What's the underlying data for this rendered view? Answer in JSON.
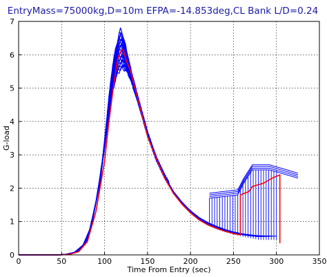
{
  "chart_data": {
    "type": "line",
    "title": "EntryMass=75000kg,D=10m EFPA=-14.853deg,CL Bank L/D=0.24",
    "xlabel": "Time From Entry (sec)",
    "ylabel": "G-load",
    "xlim": [
      0,
      350
    ],
    "ylim": [
      0,
      7
    ],
    "xticks": [
      "0",
      "50",
      "100",
      "150",
      "200",
      "250",
      "300",
      "350"
    ],
    "yticks": [
      "0",
      "1",
      "2",
      "3",
      "4",
      "5",
      "6",
      "7"
    ],
    "grid": true,
    "colors": {
      "ensemble": "#0000ff",
      "nominal": "#ff0000"
    },
    "ensemble_upper": {
      "x": [
        0,
        45,
        55,
        65,
        75,
        85,
        95,
        100,
        105,
        110,
        115,
        118,
        120,
        122,
        125,
        130,
        140,
        150,
        160,
        170,
        180,
        190,
        200,
        210,
        220,
        230,
        240,
        250,
        260,
        270,
        280
      ],
      "y": [
        0,
        0,
        0.02,
        0.08,
        0.3,
        0.9,
        2.2,
        3.4,
        4.7,
        5.8,
        6.4,
        6.75,
        6.7,
        6.5,
        6.2,
        5.6,
        4.6,
        3.65,
        2.9,
        2.35,
        1.9,
        1.58,
        1.32,
        1.12,
        0.97,
        0.86,
        0.77,
        0.7,
        0.65,
        0.62,
        0.6
      ]
    },
    "ensemble_lower": {
      "x": [
        0,
        50,
        60,
        70,
        80,
        90,
        100,
        105,
        110,
        115,
        120,
        125,
        130,
        140,
        150,
        160,
        170,
        180,
        190,
        200,
        210,
        220,
        230,
        240,
        250,
        260,
        270,
        280
      ],
      "y": [
        0,
        0,
        0.02,
        0.1,
        0.45,
        1.6,
        3.2,
        4.2,
        5.0,
        5.45,
        5.6,
        5.55,
        5.3,
        4.5,
        3.6,
        2.9,
        2.35,
        1.9,
        1.57,
        1.3,
        1.08,
        0.93,
        0.82,
        0.73,
        0.66,
        0.6,
        0.55,
        0.5
      ]
    },
    "nominal": {
      "x": [
        0,
        50,
        60,
        70,
        80,
        90,
        100,
        105,
        110,
        115,
        118,
        120,
        122,
        125,
        130,
        140,
        150,
        160,
        170,
        180,
        190,
        200,
        210,
        220,
        230,
        240,
        250,
        258,
        258,
        268,
        272,
        285,
        295,
        304,
        304
      ],
      "y": [
        0,
        0,
        0.02,
        0.1,
        0.4,
        1.3,
        2.8,
        4.0,
        5.0,
        5.8,
        6.1,
        6.15,
        6.1,
        5.9,
        5.5,
        4.55,
        3.6,
        2.85,
        2.3,
        1.85,
        1.52,
        1.26,
        1.05,
        0.9,
        0.8,
        0.71,
        0.64,
        0.6,
        1.8,
        1.9,
        2.05,
        2.15,
        2.3,
        2.4,
        0.35
      ]
    },
    "dispersed_tail": {
      "x_start": [
        222,
        300
      ],
      "y_low": 0.45,
      "top_x": [
        222,
        255,
        262,
        272,
        292,
        312,
        325
      ],
      "top_y": [
        1.7,
        1.8,
        2.15,
        2.55,
        2.55,
        2.4,
        2.3
      ]
    }
  }
}
